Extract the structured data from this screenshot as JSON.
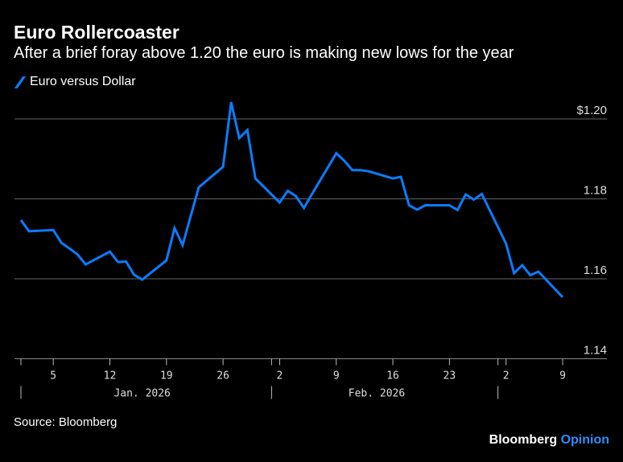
{
  "header": {
    "title": "Euro Rollercoaster",
    "subtitle": "After a brief foray above 1.20 the euro is making new lows for the year"
  },
  "footer": {
    "source": "Source: Bloomberg",
    "logo_brand": "Bloomberg",
    "logo_suffix": "Opinion"
  },
  "chart_data": {
    "type": "line",
    "title": "Euro Rollercoaster",
    "subtitle": "After a brief foray above 1.20 the euro is making new lows for the year",
    "legend_position": "top-left",
    "grid": true,
    "ylim": [
      1.14,
      1.2
    ],
    "y_ticks": [
      {
        "value": 1.14,
        "label": "1.14"
      },
      {
        "value": 1.16,
        "label": "1.16"
      },
      {
        "value": 1.18,
        "label": "1.18"
      },
      {
        "value": 1.2,
        "label": "$1.20"
      }
    ],
    "xlim": [
      "2026-01-01",
      "2026-03-13"
    ],
    "x_ticks": [
      {
        "date": "2026-01-05",
        "label": "5"
      },
      {
        "date": "2026-01-12",
        "label": "12"
      },
      {
        "date": "2026-01-19",
        "label": "19"
      },
      {
        "date": "2026-01-26",
        "label": "26"
      },
      {
        "date": "2026-02-02",
        "label": "2"
      },
      {
        "date": "2026-02-09",
        "label": "9"
      },
      {
        "date": "2026-02-16",
        "label": "16"
      },
      {
        "date": "2026-02-23",
        "label": "23"
      },
      {
        "date": "2026-03-02",
        "label": "2"
      },
      {
        "date": "2026-03-09",
        "label": "9"
      }
    ],
    "month_ticks": [
      "2026-01-01",
      "2026-02-01",
      "2026-03-01"
    ],
    "month_labels": [
      {
        "date": "2026-01-16",
        "label": "Jan. 2026"
      },
      {
        "date": "2026-02-14",
        "label": "Feb. 2026"
      }
    ],
    "series": [
      {
        "name": "Euro versus Dollar",
        "color": "#0a7cff",
        "points": [
          [
            "2026-01-01",
            1.1747
          ],
          [
            "2026-01-02",
            1.1719
          ],
          [
            "2026-01-05",
            1.1722
          ],
          [
            "2026-01-06",
            1.169
          ],
          [
            "2026-01-07",
            1.1676
          ],
          [
            "2026-01-08",
            1.1661
          ],
          [
            "2026-01-09",
            1.1636
          ],
          [
            "2026-01-12",
            1.1668
          ],
          [
            "2026-01-13",
            1.1642
          ],
          [
            "2026-01-14",
            1.1643
          ],
          [
            "2026-01-15",
            1.161
          ],
          [
            "2026-01-16",
            1.1598
          ],
          [
            "2026-01-19",
            1.1646
          ],
          [
            "2026-01-20",
            1.1727
          ],
          [
            "2026-01-21",
            1.1684
          ],
          [
            "2026-01-22",
            1.1757
          ],
          [
            "2026-01-23",
            1.1829
          ],
          [
            "2026-01-26",
            1.188
          ],
          [
            "2026-01-27",
            1.2042
          ],
          [
            "2026-01-28",
            1.1952
          ],
          [
            "2026-01-29",
            1.1972
          ],
          [
            "2026-01-30",
            1.1851
          ],
          [
            "2026-02-02",
            1.1791
          ],
          [
            "2026-02-03",
            1.182
          ],
          [
            "2026-02-04",
            1.1807
          ],
          [
            "2026-02-05",
            1.1777
          ],
          [
            "2026-02-06",
            1.1812
          ],
          [
            "2026-02-09",
            1.1914
          ],
          [
            "2026-02-10",
            1.1895
          ],
          [
            "2026-02-11",
            1.1872
          ],
          [
            "2026-02-12",
            1.1872
          ],
          [
            "2026-02-13",
            1.1869
          ],
          [
            "2026-02-16",
            1.1851
          ],
          [
            "2026-02-17",
            1.1855
          ],
          [
            "2026-02-18",
            1.1784
          ],
          [
            "2026-02-19",
            1.1773
          ],
          [
            "2026-02-20",
            1.1784
          ],
          [
            "2026-02-23",
            1.1784
          ],
          [
            "2026-02-24",
            1.1772
          ],
          [
            "2026-02-25",
            1.1811
          ],
          [
            "2026-02-26",
            1.1798
          ],
          [
            "2026-02-27",
            1.1812
          ],
          [
            "2026-03-02",
            1.1688
          ],
          [
            "2026-03-03",
            1.1614
          ],
          [
            "2026-03-04",
            1.1634
          ],
          [
            "2026-03-05",
            1.1609
          ],
          [
            "2026-03-06",
            1.1618
          ],
          [
            "2026-03-09",
            1.1554
          ]
        ]
      }
    ]
  }
}
